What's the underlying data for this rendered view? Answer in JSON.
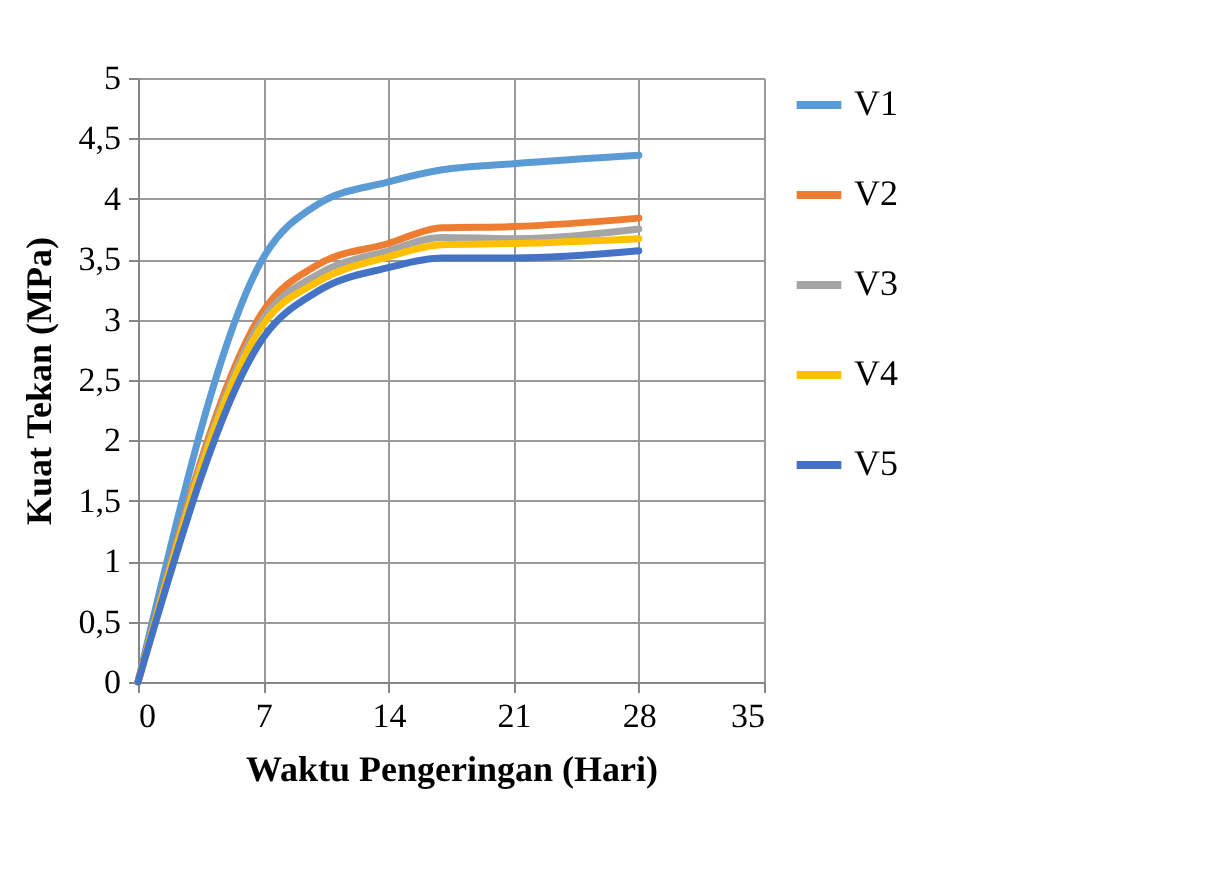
{
  "chart_data": {
    "type": "line",
    "xlabel": "Waktu Pengeringan (Hari)",
    "ylabel": "Kuat Tekan (MPa)",
    "x": [
      0,
      7,
      10,
      14,
      17,
      21,
      28
    ],
    "series": [
      {
        "name": "V1",
        "color": "#5b9bd5",
        "values": [
          0,
          3.51,
          3.95,
          4.14,
          4.24,
          4.29,
          4.36
        ]
      },
      {
        "name": "V2",
        "color": "#ed7d31",
        "values": [
          0,
          3.07,
          3.45,
          3.63,
          3.76,
          3.77,
          3.84
        ]
      },
      {
        "name": "V3",
        "color": "#a5a5a5",
        "values": [
          0,
          3.01,
          3.37,
          3.57,
          3.68,
          3.67,
          3.75
        ]
      },
      {
        "name": "V4",
        "color": "#ffc000",
        "values": [
          0,
          2.96,
          3.31,
          3.52,
          3.62,
          3.63,
          3.67
        ]
      },
      {
        "name": "V5",
        "color": "#4472c4",
        "values": [
          0,
          2.85,
          3.23,
          3.43,
          3.51,
          3.51,
          3.57
        ]
      }
    ],
    "xlim": [
      0,
      35
    ],
    "xticks": [
      0,
      7,
      14,
      21,
      28,
      35
    ],
    "ylim": [
      0,
      5
    ],
    "yticks": [
      0,
      {
        "value": 0.5,
        "label": "0,5"
      },
      1,
      {
        "value": 1.5,
        "label": "1,5"
      },
      2,
      {
        "value": 2.5,
        "label": "2,5"
      },
      3,
      {
        "value": 3.5,
        "label": "3,5"
      },
      4,
      {
        "value": 4.5,
        "label": "4,5"
      },
      5
    ],
    "grid": true,
    "legend": "right",
    "marker": "none",
    "line_style": "solid"
  }
}
